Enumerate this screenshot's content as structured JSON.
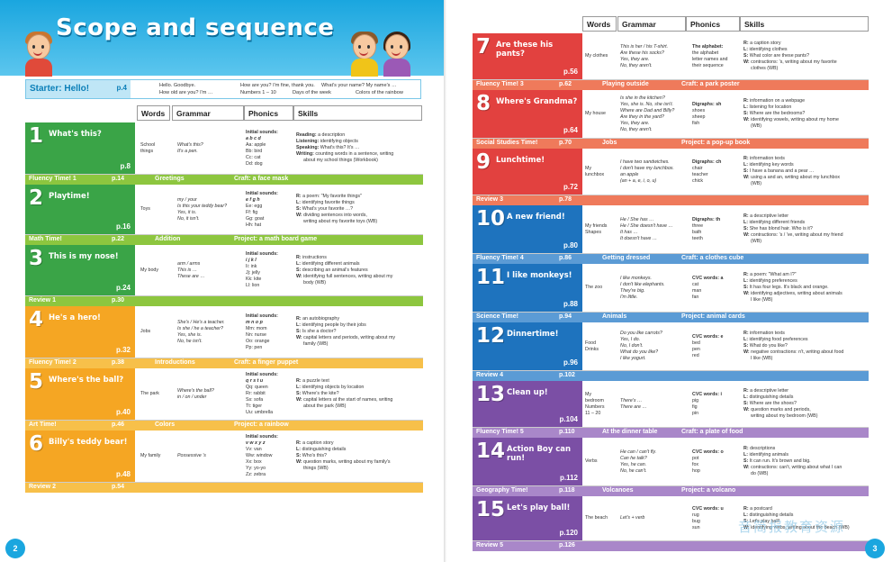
{
  "left_page": {
    "title": "Scope and sequence",
    "page_number": "2",
    "starter": {
      "label": "Starter: Hello!",
      "page": "p.4",
      "lines": [
        [
          "Hello. Goodbye.",
          "How are you? I'm fine, thank you.",
          "What's your name? My name's …"
        ],
        [
          "How old are you? I'm …",
          "Numbers 1 – 10",
          "Days of the week",
          "Colors of the rainbow"
        ]
      ]
    },
    "columns": [
      "Words",
      "Grammar",
      "Phonics",
      "Skills"
    ],
    "units": [
      {
        "num": "1",
        "title": "What's this?",
        "page": "p.8",
        "color": "#3aa447",
        "words": [
          "School",
          "things"
        ],
        "grammar": [
          "What's this?",
          "It's a pen."
        ],
        "phonics_head": "Initial sounds:",
        "phonics_key": "a b c d",
        "phonics": [
          "Aa: apple",
          "Bb: bird",
          "Cc: cat",
          "Dd: dog"
        ],
        "skills": [
          "Reading: a description",
          "Listening: identifying objects",
          "Speaking: What's this? It's …",
          "Writing: counting words in a sentence, writing",
          "about my school things (Workbook)"
        ]
      },
      {
        "num": "2",
        "title": "Playtime!",
        "page": "p.16",
        "color": "#3aa447",
        "words": [
          "Toys"
        ],
        "grammar": [
          "my / your",
          "Is this your teddy bear?",
          "Yes, it is.",
          "No, it isn't."
        ],
        "phonics_head": "Initial sounds:",
        "phonics_key": "e f g h",
        "phonics": [
          "Ee: egg",
          "Ff: fig",
          "Gg: goat",
          "Hh: hat"
        ],
        "skills": [
          "R: a poem: \"My favorite things\"",
          "L: identifying favorite things",
          "S: What's your favorite …?",
          "W: dividing sentences into words,",
          "writing about my favorite toys (WB)"
        ]
      },
      {
        "num": "3",
        "title": "This is my nose!",
        "page": "p.24",
        "color": "#3aa447",
        "words": [
          "My body"
        ],
        "grammar": [
          "arm / arms",
          "This is …",
          "These are …"
        ],
        "phonics_head": "Initial sounds:",
        "phonics_key": "i j k l",
        "phonics": [
          "Ii: ink",
          "Jj: jelly",
          "Kk: kite",
          "Ll: lion"
        ],
        "skills": [
          "R: instructions",
          "L: identifying different animals",
          "S: describing an animal's features",
          "W: identifying full sentences, writing about my",
          "body (WB)"
        ]
      },
      {
        "num": "4",
        "title": "He's a hero!",
        "page": "p.32",
        "color": "#f5a623",
        "words": [
          "Jobs"
        ],
        "grammar": [
          "She's / He's a teacher.",
          "Is she / he a teacher?",
          "Yes, she is.",
          "No, he isn't."
        ],
        "phonics_head": "Initial sounds:",
        "phonics_key": "m n o p",
        "phonics": [
          "Mm: mom",
          "Nn: nurse",
          "Oo: orange",
          "Pp: pen"
        ],
        "skills": [
          "R: an autobiography",
          "L: identifying people by their jobs",
          "S: Is she a doctor?",
          "W: capital letters and periods, writing about my",
          "family (WB)"
        ]
      },
      {
        "num": "5",
        "title": "Where's the ball?",
        "page": "p.40",
        "color": "#f5a623",
        "words": [
          "The park"
        ],
        "grammar": [
          "Where's the ball?",
          "in / on / under"
        ],
        "phonics_head": "Initial sounds:",
        "phonics_key": "q r s t u",
        "phonics": [
          "Qq: queen",
          "Rr: rabbit",
          "Ss: sofa",
          "Tt: tiger",
          "Uu: umbrella"
        ],
        "skills": [
          "R: a puzzle text",
          "L: identifying objects by location",
          "S: Where's the kite?",
          "W: capital letters at the start of names, writing",
          "about the park (WB)"
        ]
      },
      {
        "num": "6",
        "title": "Billy's teddy bear!",
        "page": "p.48",
        "color": "#f5a623",
        "words": [
          "My family"
        ],
        "grammar": [
          "Possessive 's"
        ],
        "phonics_head": "Initial sounds:",
        "phonics_key": "v w x y z",
        "phonics": [
          "Vv: van",
          "Ww: window",
          "Xx: box",
          "Yy: yo-yo",
          "Zz: zebra"
        ],
        "skills": [
          "R: a caption story",
          "L: distinguishing details",
          "S: Who's this?",
          "W: question marks, writing about my family's",
          "things (WB)"
        ]
      }
    ],
    "bands": [
      {
        "label": "Fluency Time! 1",
        "page": "p.14",
        "a": "Greetings",
        "b": "Craft: a face mask",
        "color": "#8dc63f"
      },
      {
        "label": "Math Time!",
        "page": "p.22",
        "a": "Addition",
        "b": "Project: a math board game",
        "color": "#8dc63f"
      },
      {
        "label": "Review 1",
        "page": "p.30",
        "a": "",
        "b": "",
        "color": "#8dc63f"
      },
      {
        "label": "Fluency Time! 2",
        "page": "p.38",
        "a": "Introductions",
        "b": "Craft: a finger puppet",
        "color": "#f7c04a"
      },
      {
        "label": "Art Time!",
        "page": "p.46",
        "a": "Colors",
        "b": "Project: a rainbow",
        "color": "#f7c04a"
      },
      {
        "label": "Review 2",
        "page": "p.54",
        "a": "",
        "b": "",
        "color": "#f7c04a"
      }
    ]
  },
  "right_page": {
    "page_number": "3",
    "columns": [
      "Words",
      "Grammar",
      "Phonics",
      "Skills"
    ],
    "units": [
      {
        "num": "7",
        "title": "Are these his pants?",
        "page": "p.56",
        "color": "#e2413f",
        "words": [
          "My clothes"
        ],
        "grammar": [
          "This is her / his T-shirt.",
          "Are these his socks?",
          "Yes, they are.",
          "No, they aren't."
        ],
        "phonics_head": "The alphabet:",
        "phonics_key": "",
        "phonics": [
          "the alphabet",
          "letter names and",
          "their sequence"
        ],
        "skills": [
          "R: a caption story",
          "L: identifying clothes",
          "S: What color are these pants?",
          "W: contractions: 's, writing about my favorite",
          "clothes (WB)"
        ]
      },
      {
        "num": "8",
        "title": "Where's Grandma?",
        "page": "p.64",
        "color": "#e2413f",
        "words": [
          "My house"
        ],
        "grammar": [
          "Is she in the kitchen?",
          "Yes, she is. No, she isn't.",
          "Where are Dad and Billy?",
          "Are they in the yard?",
          "Yes, they are.",
          "No, they aren't."
        ],
        "phonics_head": "Digraphs: sh",
        "phonics_key": "",
        "phonics": [
          "shoes",
          "sheep",
          "fish"
        ],
        "skills": [
          "R: information on a webpage",
          "L: listening for location",
          "S: Where are the bedrooms?",
          "W: identifying vowels, writing about my home",
          "(WB)"
        ]
      },
      {
        "num": "9",
        "title": "Lunchtime!",
        "page": "p.72",
        "color": "#e2413f",
        "words": [
          "My",
          "lunchbox"
        ],
        "grammar": [
          "I have two sandwiches.",
          "I don't have my lunchbox.",
          "an apple",
          "(an + a, e, i, o, u)"
        ],
        "phonics_head": "Digraphs: ch",
        "phonics_key": "",
        "phonics": [
          "chair",
          "teacher",
          "chick"
        ],
        "skills": [
          "R: information texts",
          "L: identifying key words",
          "S: I have a banana and a pear …",
          "W: using a and an, writing about my lunchbox",
          "(WB)"
        ]
      },
      {
        "num": "10",
        "title": "A new friend!",
        "page": "p.80",
        "color": "#1e73be",
        "words": [
          "My friends",
          "Shapes"
        ],
        "grammar": [
          "He / She has …",
          "He / She doesn't have …",
          "It has …",
          "It doesn't have …"
        ],
        "phonics_head": "Digraphs: th",
        "phonics_key": "",
        "phonics": [
          "three",
          "bath",
          "teeth"
        ],
        "skills": [
          "R: a descriptive letter",
          "L: identifying different friends",
          "S: She has blond hair. Who is it?",
          "W: contractions: 's / 've, writing about my friend",
          "(WB)"
        ]
      },
      {
        "num": "11",
        "title": "I like monkeys!",
        "page": "p.88",
        "color": "#1e73be",
        "words": [
          "The zoo"
        ],
        "grammar": [
          "I like monkeys.",
          "I don't like elephants.",
          "They're big.",
          "I'm little."
        ],
        "phonics_head": "CVC words: a",
        "phonics_key": "",
        "phonics": [
          "cat",
          "man",
          "fan"
        ],
        "skills": [
          "R: a poem: \"What am I?\"",
          "L: identifying preferences",
          "S: It has four legs. It's black and orange.",
          "W: identifying adjectives, writing about animals",
          "I like (WB)"
        ]
      },
      {
        "num": "12",
        "title": "Dinnertime!",
        "page": "p.96",
        "color": "#1e73be",
        "words": [
          "Food",
          "Drinks"
        ],
        "grammar": [
          "Do you like carrots?",
          "Yes, I do.",
          "No, I don't.",
          "What do you like?",
          "I like yogurt."
        ],
        "phonics_head": "CVC words: e",
        "phonics_key": "",
        "phonics": [
          "bed",
          "pen",
          "red"
        ],
        "skills": [
          "R: information texts",
          "L: identifying food preferences",
          "S: What do you like?",
          "W: negative contractions: n't, writing about food",
          "I like (WB)"
        ]
      },
      {
        "num": "13",
        "title": "Clean up!",
        "page": "p.104",
        "color": "#7b4fa5",
        "words": [
          "My",
          "bedroom",
          "Numbers",
          "11 – 20"
        ],
        "grammar": [
          "There's …",
          "There are …"
        ],
        "phonics_head": "CVC words: i",
        "phonics_key": "",
        "phonics": [
          "pig",
          "fig",
          "pin"
        ],
        "skills": [
          "R: a descriptive letter",
          "L: distinguishing details",
          "S: Where are the shoes?",
          "W: question marks and periods,",
          "writing about my bedroom (WB)"
        ]
      },
      {
        "num": "14",
        "title": "Action Boy can run!",
        "page": "p.112",
        "color": "#7b4fa5",
        "words": [
          "Verbs"
        ],
        "grammar": [
          "He can / can't fly.",
          "Can he talk?",
          "Yes, he can.",
          "No, he can't."
        ],
        "phonics_head": "CVC words: o",
        "phonics_key": "",
        "phonics": [
          "pot",
          "fox",
          "hop"
        ],
        "skills": [
          "R: descriptions",
          "L: identifying animals",
          "S: It can run. It's brown and big.",
          "W: contractions: can't, writing about what I can",
          "do (WB)"
        ]
      },
      {
        "num": "15",
        "title": "Let's play ball!",
        "page": "p.120",
        "color": "#7b4fa5",
        "words": [
          "The beach"
        ],
        "grammar": [
          "Let's + verb"
        ],
        "phonics_head": "CVC words: u",
        "phonics_key": "",
        "phonics": [
          "rug",
          "bug",
          "sun"
        ],
        "skills": [
          "R: a postcard",
          "L: distinguishing details",
          "S: Let's play ball!",
          "W: identifying verbs, writing about the beach (WB)"
        ]
      }
    ],
    "bands": [
      {
        "label": "Fluency Time! 3",
        "page": "p.62",
        "a": "Playing outside",
        "b": "Craft: a park poster",
        "color": "#ef7a5b"
      },
      {
        "label": "Social Studies Time!",
        "page": "p.70",
        "a": "Jobs",
        "b": "Project: a pop-up book",
        "color": "#ef7a5b"
      },
      {
        "label": "Review 3",
        "page": "p.78",
        "a": "",
        "b": "",
        "color": "#ef7a5b"
      },
      {
        "label": "Fluency Time! 4",
        "page": "p.86",
        "a": "Getting dressed",
        "b": "Craft: a clothes cube",
        "color": "#5b9bd5"
      },
      {
        "label": "Science Time!",
        "page": "p.94",
        "a": "Animals",
        "b": "Project: animal cards",
        "color": "#5b9bd5"
      },
      {
        "label": "Review 4",
        "page": "p.102",
        "a": "",
        "b": "",
        "color": "#5b9bd5"
      },
      {
        "label": "Fluency Time! 5",
        "page": "p.110",
        "a": "At the dinner table",
        "b": "Craft: a plate of food",
        "color": "#a987c9"
      },
      {
        "label": "Geography Time!",
        "page": "p.118",
        "a": "Volcanoes",
        "b": "Project: a volcano",
        "color": "#a987c9"
      },
      {
        "label": "Review 5",
        "page": "p.126",
        "a": "",
        "b": "",
        "color": "#a987c9"
      }
    ]
  },
  "watermark": "音简报教育资源"
}
